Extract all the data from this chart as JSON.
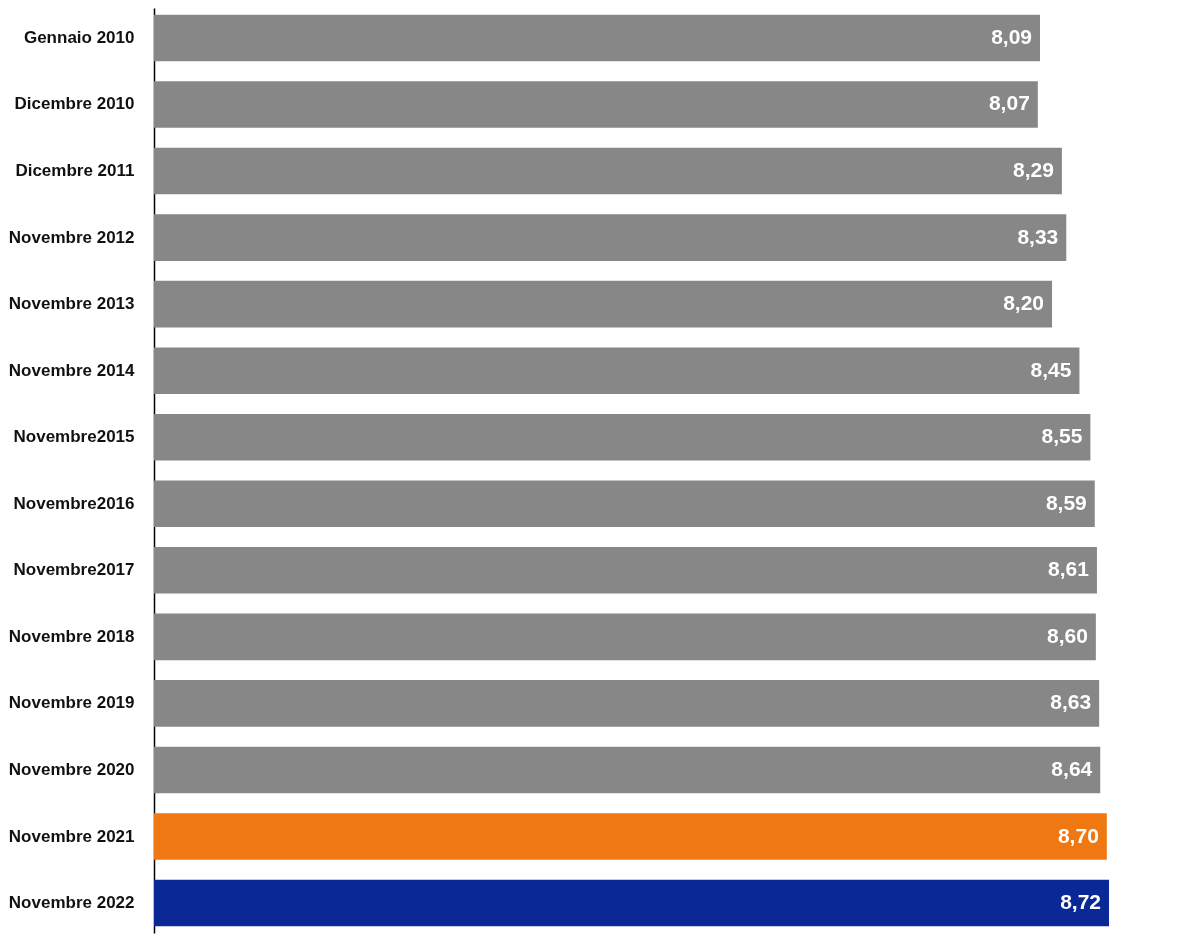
{
  "chart_data": {
    "type": "bar",
    "orientation": "horizontal",
    "categories": [
      "Gennaio 2010",
      "Dicembre 2010",
      "Dicembre 2011",
      "Novembre 2012",
      "Novembre 2013",
      "Novembre 2014",
      "Novembre2015",
      "Novembre2016",
      "Novembre2017",
      "Novembre 2018",
      "Novembre 2019",
      "Novembre 2020",
      "Novembre 2021",
      "Novembre 2022"
    ],
    "values": [
      8.09,
      8.07,
      8.29,
      8.33,
      8.2,
      8.45,
      8.55,
      8.59,
      8.61,
      8.6,
      8.63,
      8.64,
      8.7,
      8.72
    ],
    "value_labels": [
      "8,09",
      "8,07",
      "8,29",
      "8,33",
      "8,20",
      "8,45",
      "8,55",
      "8,59",
      "8,61",
      "8,60",
      "8,63",
      "8,64",
      "8,70",
      "8,72"
    ],
    "colors": [
      "#878787",
      "#878787",
      "#878787",
      "#878787",
      "#878787",
      "#878787",
      "#878787",
      "#878787",
      "#878787",
      "#878787",
      "#878787",
      "#878787",
      "#f07813",
      "#0a2896"
    ]
  }
}
